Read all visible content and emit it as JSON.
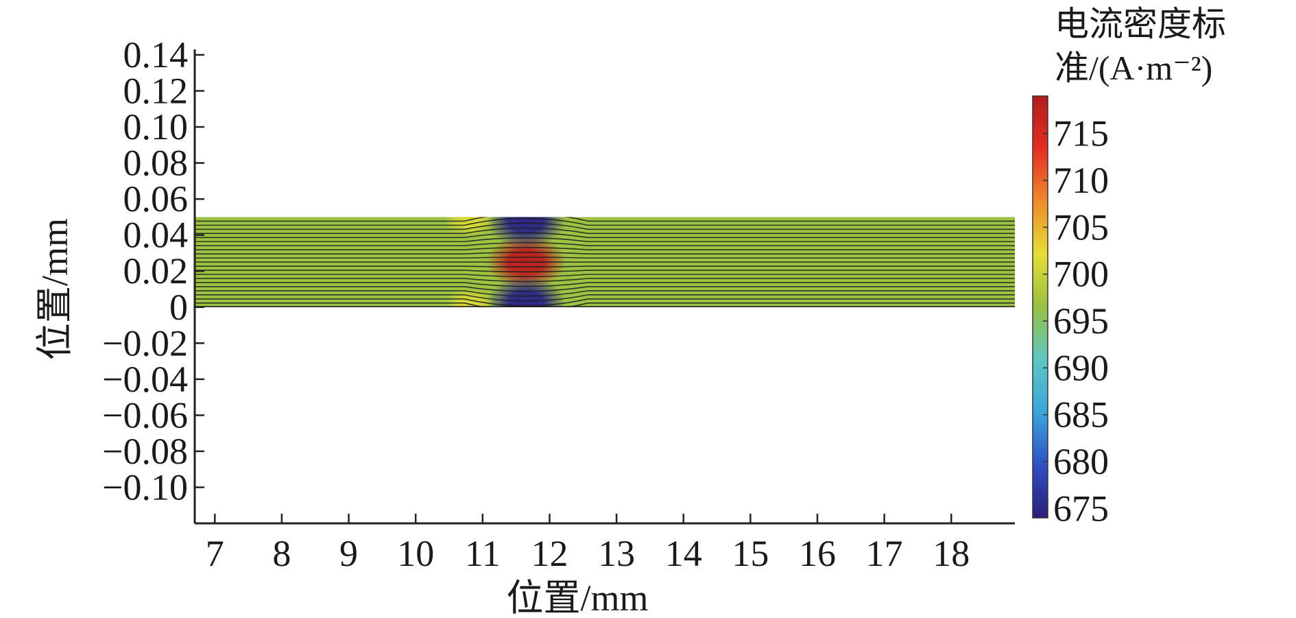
{
  "chart_data": {
    "type": "heatmap",
    "xlabel": "位置/mm",
    "ylabel": "位置/mm",
    "xlim": [
      6.7,
      18.95
    ],
    "ylim": [
      -0.12,
      0.14
    ],
    "x_ticks": [
      "7",
      "8",
      "9",
      "10",
      "11",
      "12",
      "13",
      "14",
      "15",
      "16",
      "17",
      "18"
    ],
    "y_ticks": [
      "0.14",
      "0.12",
      "0.10",
      "0.08",
      "0.06",
      "0.04",
      "0.02",
      "0",
      "−0.02",
      "−0.04",
      "−0.06",
      "−0.08",
      "−0.10"
    ],
    "y_tick_values": [
      0.14,
      0.12,
      0.1,
      0.08,
      0.06,
      0.04,
      0.02,
      0,
      -0.02,
      -0.04,
      -0.06,
      -0.08,
      -0.1
    ],
    "domain": {
      "x": [
        6.7,
        18.95
      ],
      "y": [
        0,
        0.05
      ]
    },
    "baseline_value": 697,
    "hotspots": [
      {
        "x": 11.65,
        "y": 0.025,
        "value": 718
      },
      {
        "x": 11.65,
        "y": 0.048,
        "value": 675
      },
      {
        "x": 11.65,
        "y": 0.002,
        "value": 675
      },
      {
        "x": 10.8,
        "y": 0.048,
        "value": 701
      },
      {
        "x": 10.8,
        "y": 0.002,
        "value": 701
      }
    ],
    "colorbar": {
      "title_line1": "电流密度标",
      "title_line2": "准/(A·m⁻²)",
      "ticks": [
        "715",
        "710",
        "705",
        "700",
        "695",
        "690",
        "685",
        "680",
        "675"
      ],
      "tick_values": [
        715,
        710,
        705,
        700,
        695,
        690,
        685,
        680,
        675
      ],
      "range": [
        674,
        719
      ],
      "colormap": [
        "#2a1e7a",
        "#2f4fc4",
        "#3aa6dc",
        "#5cc6c2",
        "#96c043",
        "#e6de34",
        "#f08a2a",
        "#e52d22",
        "#b01e1e"
      ]
    },
    "line_color": "#1c1c1c",
    "grid": false
  }
}
